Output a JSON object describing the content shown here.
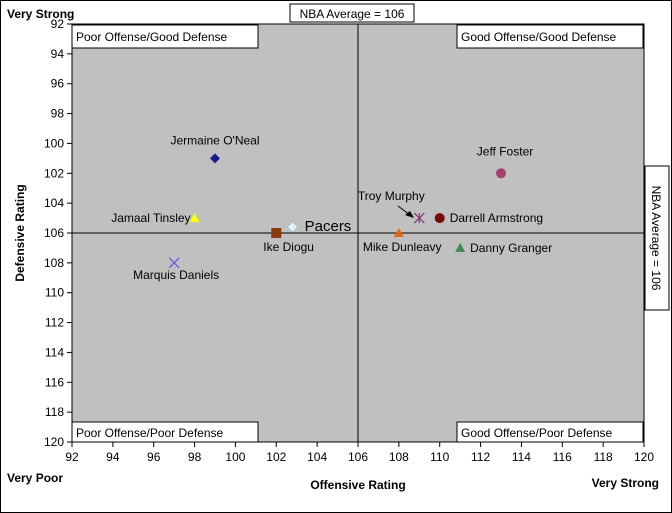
{
  "chart_data": {
    "type": "scatter",
    "title": "",
    "xlabel": "Offensive Rating",
    "ylabel": "Defensive Rating",
    "xlim": [
      92,
      120
    ],
    "ylim": [
      92,
      120
    ],
    "y_inverted": true,
    "x_ticks": [
      92,
      94,
      96,
      98,
      100,
      102,
      104,
      106,
      108,
      110,
      112,
      114,
      116,
      118,
      120
    ],
    "y_ticks": [
      92,
      94,
      96,
      98,
      100,
      102,
      104,
      106,
      108,
      110,
      112,
      114,
      116,
      118,
      120
    ],
    "grid": false,
    "reference_lines": {
      "x": {
        "value": 106,
        "label": "NBA Average = 106"
      },
      "y": {
        "value": 106,
        "label": "NBA Average = 106"
      }
    },
    "corner_labels": {
      "top_left": "Very Strong",
      "bottom_left": "Very Poor",
      "bottom_right": "Very Strong"
    },
    "quadrants": {
      "top_left": "Poor Offense/Good Defense",
      "top_right": "Good Offense/Good Defense",
      "bottom_left": "Poor Offense/Poor Defense",
      "bottom_right": "Good Offense/Poor Defense"
    },
    "points": [
      {
        "label": "Jermaine O'Neal",
        "x": 99,
        "y": 101,
        "marker": "diamond",
        "color": "#1a1a8c"
      },
      {
        "label": "Jamaal Tinsley",
        "x": 98,
        "y": 105,
        "marker": "triangle",
        "color": "#ffff00"
      },
      {
        "label": "Marquis Daniels",
        "x": 97,
        "y": 108,
        "marker": "x",
        "color": "#5a5ae6"
      },
      {
        "label": "Ike Diogu",
        "x": 102,
        "y": 106,
        "marker": "square",
        "color": "#8b3a0e"
      },
      {
        "label": "Pacers",
        "x": 102.8,
        "y": 105.6,
        "marker": "diamond",
        "color": "#dff3fb"
      },
      {
        "label": "Troy Murphy",
        "x": 109,
        "y": 105,
        "marker": "star",
        "color": "#8b2f7a"
      },
      {
        "label": "Darrell Armstrong",
        "x": 110,
        "y": 105,
        "marker": "circle",
        "color": "#7a0a0a"
      },
      {
        "label": "Mike Dunleavy",
        "x": 108,
        "y": 106,
        "marker": "triangle",
        "color": "#e8670c"
      },
      {
        "label": "Danny Granger",
        "x": 111,
        "y": 107,
        "marker": "triangle",
        "color": "#3c8c5a"
      },
      {
        "label": "Jeff Foster",
        "x": 113,
        "y": 102,
        "marker": "circle",
        "color": "#a8406f"
      }
    ]
  }
}
